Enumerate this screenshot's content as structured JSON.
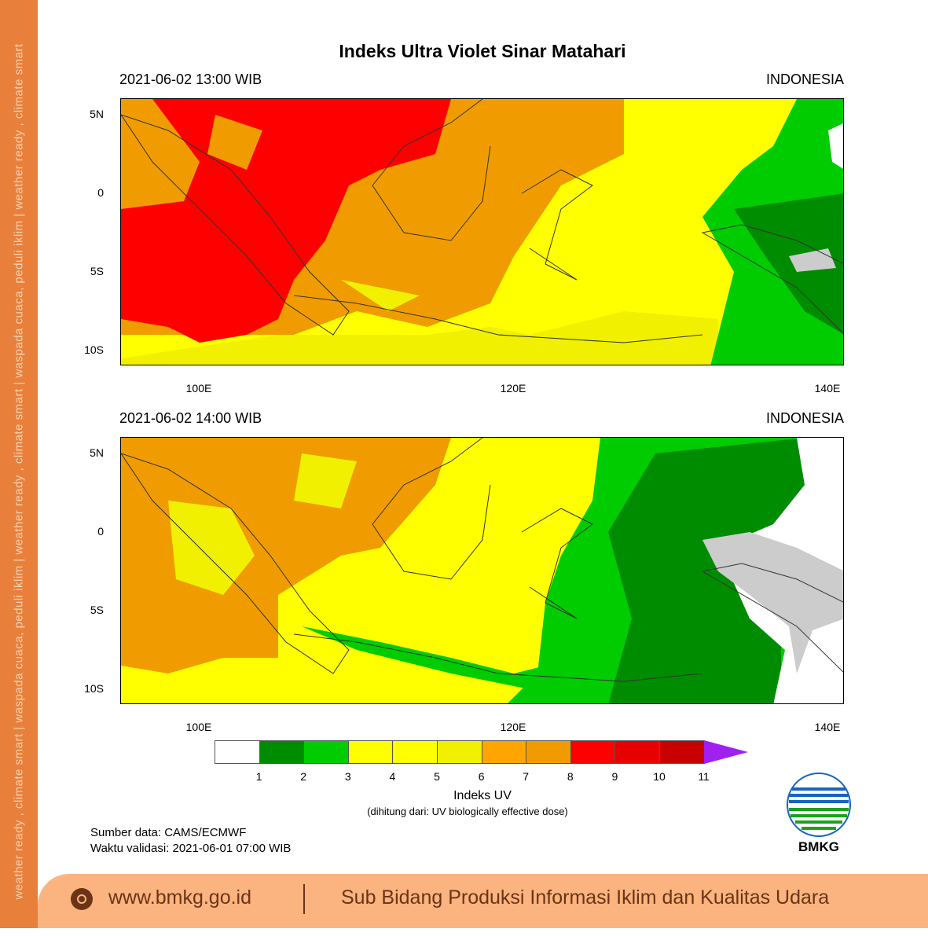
{
  "sidebar": {
    "text": "weather ready , climate smart  |  waspada cuaca, peduli iklim  |  weather ready , climate smart  |  waspada cuaca, peduli iklim  |  weather ready , climate smart"
  },
  "title": "Indeks Ultra Violet Sinar Matahari",
  "panels": [
    {
      "datetime": "2021-06-02  13:00 WIB",
      "region": "INDONESIA"
    },
    {
      "datetime": "2021-06-02  14:00 WIB",
      "region": "INDONESIA"
    }
  ],
  "lat_ticks": [
    "5N",
    "0",
    "5S",
    "10S"
  ],
  "lon_ticks": [
    "100E",
    "120E",
    "140E"
  ],
  "colorbar": {
    "labels": [
      "1",
      "2",
      "3",
      "4",
      "5",
      "6",
      "7",
      "8",
      "9",
      "10",
      "11"
    ],
    "colors": [
      "#ffffff",
      "#008c00",
      "#00cc00",
      "#ffff00",
      "#ffff00",
      "#f0f000",
      "#ffa500",
      "#f09c00",
      "#ff0000",
      "#e60000",
      "#c80000",
      "#a020f0"
    ],
    "title": "Indeks UV",
    "subtitle": "(dihitung dari: UV biologically effective dose)"
  },
  "source": "Sumber data: CAMS/ECMWF",
  "validity": "Waktu validasi: 2021-06-01 07:00 WIB",
  "logo": {
    "text": "BMKG",
    "colors": [
      "#1565c0",
      "#1aa31a"
    ]
  },
  "footer": {
    "website": "www.bmkg.go.id",
    "unit": "Sub Bidang Produksi Informasi Iklim dan Kualitas Udara",
    "icon": "globe-icon"
  }
}
